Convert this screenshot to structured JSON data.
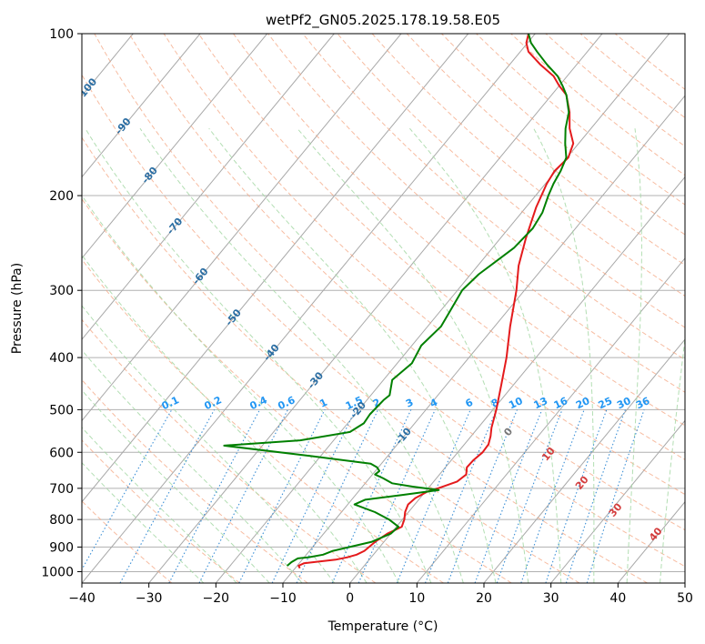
{
  "chart_data": {
    "type": "line",
    "subtype": "skew-t log-p",
    "title": "wetPf2_GN05.2025.178.19.58.E05",
    "xlabel": "Temperature (°C)",
    "ylabel": "Pressure (hPa)",
    "xlim": [
      -40,
      50
    ],
    "ylim": [
      1050,
      100
    ],
    "y_scale": "log",
    "x_ticks": [
      -40,
      -30,
      -20,
      -10,
      0,
      10,
      20,
      30,
      40,
      50
    ],
    "y_ticks": [
      1000,
      900,
      800,
      700,
      600,
      500,
      400,
      300,
      200,
      100
    ],
    "grid": true,
    "isotherm_labels": [
      "-100",
      "-90",
      "-80",
      "-70",
      "-60",
      "-50",
      "-40",
      "-30",
      "-20",
      "-10"
    ],
    "mixing_ratio_labels": [
      "0.1",
      "0.2",
      "0.4",
      "0.6",
      "1",
      "1.5",
      "2",
      "3",
      "4",
      "6",
      "8",
      "10",
      "13",
      "16",
      "20",
      "25",
      "30",
      "36"
    ],
    "moist_adiabat_labels": [
      "0",
      "10",
      "20",
      "30",
      "40"
    ],
    "series": [
      {
        "name": "",
        "role": "temperature",
        "color": "#e41a1c",
        "points": [
          [
            -9.3,
            985
          ],
          [
            -9.8,
            975
          ],
          [
            -9.3,
            965
          ],
          [
            -5,
            950
          ],
          [
            -3.5,
            940
          ],
          [
            -2.5,
            930
          ],
          [
            -1.8,
            915
          ],
          [
            -1.3,
            880
          ],
          [
            -0.5,
            850
          ],
          [
            0.8,
            825
          ],
          [
            0.3,
            800
          ],
          [
            -0.5,
            775
          ],
          [
            -1,
            750
          ],
          [
            -0.7,
            730
          ],
          [
            0.3,
            710
          ],
          [
            1.5,
            700
          ],
          [
            3.5,
            680
          ],
          [
            4,
            660
          ],
          [
            3.2,
            640
          ],
          [
            3.3,
            620
          ],
          [
            3.7,
            600
          ],
          [
            3.6,
            580
          ],
          [
            2.9,
            560
          ],
          [
            2,
            540
          ],
          [
            0.5,
            500
          ],
          [
            -1.8,
            450
          ],
          [
            -4.4,
            400
          ],
          [
            -7.7,
            350
          ],
          [
            -11.2,
            300
          ],
          [
            -13.9,
            270
          ],
          [
            -16.2,
            240
          ],
          [
            -18.5,
            210
          ],
          [
            -19.8,
            190
          ],
          [
            -20.2,
            180
          ],
          [
            -19.8,
            170
          ],
          [
            -20.8,
            160
          ],
          [
            -23.2,
            150
          ],
          [
            -25.2,
            140
          ],
          [
            -27.8,
            130
          ],
          [
            -30,
            125
          ],
          [
            -32,
            120
          ],
          [
            -35.5,
            114
          ],
          [
            -38.8,
            108
          ],
          [
            -40.2,
            104
          ],
          [
            -41,
            100
          ]
        ]
      },
      {
        "name": "",
        "role": "dewpoint",
        "color": "#008000",
        "points": [
          [
            -11.5,
            975
          ],
          [
            -11.3,
            960
          ],
          [
            -10.8,
            945
          ],
          [
            -9.3,
            940
          ],
          [
            -7.5,
            930
          ],
          [
            -6.5,
            915
          ],
          [
            -4.5,
            900
          ],
          [
            -1.8,
            880
          ],
          [
            0,
            850
          ],
          [
            0.3,
            825
          ],
          [
            -2,
            800
          ],
          [
            -5,
            775
          ],
          [
            -9,
            750
          ],
          [
            -8,
            735
          ],
          [
            -3,
            720
          ],
          [
            1.8,
            705
          ],
          [
            -2.5,
            695
          ],
          [
            -6,
            685
          ],
          [
            -8,
            670
          ],
          [
            -9.6,
            660
          ],
          [
            -9.4,
            650
          ],
          [
            -10.2,
            640
          ],
          [
            -11.6,
            630
          ],
          [
            -21.3,
            610
          ],
          [
            -35.7,
            583
          ],
          [
            -25,
            570
          ],
          [
            -18.6,
            550
          ],
          [
            -17.6,
            530
          ],
          [
            -17.8,
            510
          ],
          [
            -17.5,
            480
          ],
          [
            -17.2,
            470
          ],
          [
            -18.7,
            440
          ],
          [
            -17.8,
            410
          ],
          [
            -18.6,
            380
          ],
          [
            -18,
            350
          ],
          [
            -18.5,
            330
          ],
          [
            -19.3,
            300
          ],
          [
            -18.8,
            280
          ],
          [
            -17.8,
            265
          ],
          [
            -16.8,
            250
          ],
          [
            -16.4,
            230
          ],
          [
            -16.9,
            215
          ],
          [
            -18.1,
            200
          ],
          [
            -18.8,
            190
          ],
          [
            -19.3,
            180
          ],
          [
            -20.1,
            170
          ],
          [
            -22,
            160
          ],
          [
            -23.8,
            150
          ],
          [
            -25.3,
            140
          ],
          [
            -27.8,
            130
          ],
          [
            -29.5,
            125
          ],
          [
            -31.4,
            120
          ],
          [
            -34.5,
            114
          ],
          [
            -37.5,
            108
          ],
          [
            -39.5,
            104
          ],
          [
            -41,
            100
          ]
        ]
      }
    ]
  }
}
